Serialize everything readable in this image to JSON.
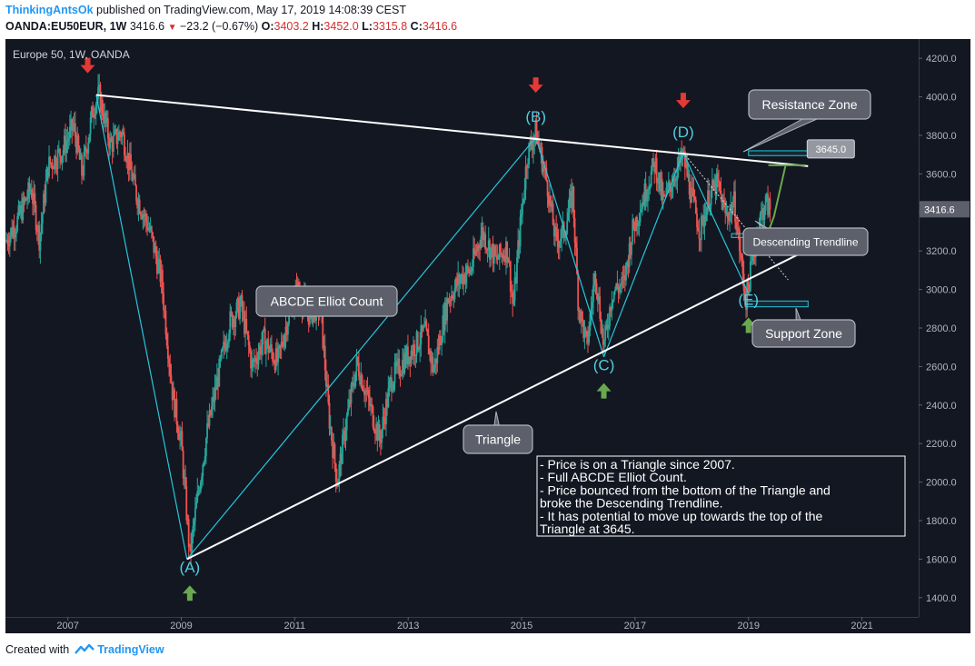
{
  "header": {
    "author": "ThinkingAntsOk",
    "published": "published on TradingView.com, May 17, 2019 14:08:39 CEST",
    "symbol": "OANDA:EU50EUR, 1W",
    "last": "3416.6",
    "down_arrow": "▼",
    "change": "−23.2 (−0.67%)",
    "o_label": "O:",
    "o_value": "3403.2",
    "h_label": "H:",
    "h_value": "3452.0",
    "l_label": "L:",
    "l_value": "3315.8",
    "c_label": "C:",
    "c_value": "3416.6"
  },
  "footer": {
    "created_with": "Created with",
    "brand": "TradingView",
    "logo_icon": "tradingview-logo-icon"
  },
  "chart_data": {
    "type": "candlestick",
    "title": "Europe 50, 1W, OANDA",
    "x_ticks": [
      2007,
      2009,
      2011,
      2013,
      2015,
      2017,
      2019,
      2021
    ],
    "y_ticks": [
      "1400.0",
      "1600.0",
      "1800.0",
      "2000.0",
      "2200.0",
      "2400.0",
      "2600.0",
      "2800.0",
      "3000.0",
      "3200.0",
      "3400.0",
      "3600.0",
      "3800.0",
      "4000.0",
      "4200.0"
    ],
    "xlim": [
      2005.9,
      2022.0
    ],
    "ylim": [
      1300,
      4300
    ],
    "last_price": 3416.6,
    "last_price_label": "3416.6",
    "price_path": [
      [
        2005.9,
        3250
      ],
      [
        2006.1,
        3350
      ],
      [
        2006.35,
        3530
      ],
      [
        2006.5,
        3260
      ],
      [
        2006.65,
        3640
      ],
      [
        2006.9,
        3720
      ],
      [
        2007.1,
        3850
      ],
      [
        2007.25,
        3600
      ],
      [
        2007.45,
        3950
      ],
      [
        2007.55,
        4010
      ],
      [
        2007.75,
        3750
      ],
      [
        2007.95,
        3820
      ],
      [
        2008.2,
        3500
      ],
      [
        2008.45,
        3300
      ],
      [
        2008.65,
        3050
      ],
      [
        2008.85,
        2450
      ],
      [
        2009.0,
        2200
      ],
      [
        2009.15,
        1620
      ],
      [
        2009.3,
        1950
      ],
      [
        2009.45,
        2250
      ],
      [
        2009.65,
        2550
      ],
      [
        2009.85,
        2830
      ],
      [
        2010.05,
        2920
      ],
      [
        2010.25,
        2600
      ],
      [
        2010.45,
        2740
      ],
      [
        2010.7,
        2620
      ],
      [
        2010.9,
        2880
      ],
      [
        2011.05,
        3000
      ],
      [
        2011.25,
        2870
      ],
      [
        2011.45,
        2920
      ],
      [
        2011.6,
        2350
      ],
      [
        2011.75,
        2000
      ],
      [
        2011.9,
        2300
      ],
      [
        2012.1,
        2620
      ],
      [
        2012.3,
        2420
      ],
      [
        2012.5,
        2220
      ],
      [
        2012.7,
        2530
      ],
      [
        2012.9,
        2620
      ],
      [
        2013.1,
        2700
      ],
      [
        2013.3,
        2780
      ],
      [
        2013.45,
        2580
      ],
      [
        2013.7,
        2950
      ],
      [
        2013.95,
        3070
      ],
      [
        2014.1,
        3100
      ],
      [
        2014.3,
        3300
      ],
      [
        2014.55,
        3150
      ],
      [
        2014.75,
        3220
      ],
      [
        2014.85,
        2900
      ],
      [
        2014.95,
        3250
      ],
      [
        2015.1,
        3700
      ],
      [
        2015.25,
        3820
      ],
      [
        2015.45,
        3550
      ],
      [
        2015.6,
        3250
      ],
      [
        2015.75,
        3300
      ],
      [
        2015.9,
        3500
      ],
      [
        2016.0,
        2930
      ],
      [
        2016.15,
        2700
      ],
      [
        2016.3,
        3100
      ],
      [
        2016.45,
        2700
      ],
      [
        2016.6,
        2990
      ],
      [
        2016.8,
        3030
      ],
      [
        2016.95,
        3300
      ],
      [
        2017.15,
        3480
      ],
      [
        2017.35,
        3660
      ],
      [
        2017.5,
        3450
      ],
      [
        2017.7,
        3600
      ],
      [
        2017.85,
        3690
      ],
      [
        2018.0,
        3480
      ],
      [
        2018.15,
        3300
      ],
      [
        2018.3,
        3480
      ],
      [
        2018.45,
        3550
      ],
      [
        2018.6,
        3380
      ],
      [
        2018.75,
        3450
      ],
      [
        2018.85,
        3200
      ],
      [
        2018.95,
        2940
      ],
      [
        2019.1,
        3200
      ],
      [
        2019.2,
        3360
      ],
      [
        2019.3,
        3450
      ],
      [
        2019.38,
        3416.6
      ]
    ],
    "trendlines": {
      "triangle_top": [
        [
          2007.5,
          4010
        ],
        [
          2020.05,
          3640
        ]
      ],
      "triangle_bottom": [
        [
          2009.1,
          1600
        ],
        [
          2020.0,
          3200
        ]
      ],
      "elliott_count": [
        [
          2007.5,
          4010
        ],
        [
          2009.1,
          1600
        ],
        [
          2015.25,
          3790
        ],
        [
          2016.45,
          2650
        ],
        [
          2017.85,
          3710
        ],
        [
          2019.0,
          2980
        ]
      ],
      "descending_trendline": [
        [
          2017.85,
          3710
        ],
        [
          2019.7,
          3050
        ]
      ]
    },
    "wave_labels": [
      {
        "label": "(A)",
        "x": 2009.15,
        "y": 1530,
        "arrow": "up"
      },
      {
        "label": "(B)",
        "x": 2015.25,
        "y": 3870,
        "arrow": "down"
      },
      {
        "label": "(C)",
        "x": 2016.45,
        "y": 2580,
        "arrow": "up"
      },
      {
        "label": "(D)",
        "x": 2017.85,
        "y": 3790,
        "arrow": "down"
      },
      {
        "label": "(E)",
        "x": 2019.0,
        "y": 2920,
        "arrow": "up"
      }
    ],
    "peak_arrow": {
      "x": 2007.35,
      "y": 4160,
      "arrow": "down"
    },
    "zones": [
      {
        "name": "resistance",
        "x0": 2019.0,
        "x1": 2020.1,
        "y0": 3695,
        "y1": 3720
      },
      {
        "name": "support",
        "x0": 2018.95,
        "x1": 2020.05,
        "y0": 2910,
        "y1": 2940
      },
      {
        "name": "breakout",
        "x0": 2018.7,
        "x1": 2019.85,
        "y0": 3270,
        "y1": 3290
      }
    ],
    "target": {
      "label": "3645.0",
      "value": 3645,
      "x_from": 2019.3,
      "y_from": 3260,
      "x_to": 2019.65,
      "y_to": 3640
    },
    "annotations": {
      "resistance": "Resistance Zone",
      "descending": "Descending Trendline",
      "support": "Support Zone",
      "elliott": "ABCDE Elliot Count",
      "triangle": "Triangle"
    },
    "notes": [
      "- Price is on a Triangle since 2007.",
      "- Full ABCDE Elliot Count.",
      "- Price bounced from the bottom of the Triangle and",
      "broke the Descending Trendline.",
      "- It has potential to move up towards the top of the",
      "Triangle at 3645."
    ],
    "colors": {
      "background": "#131722",
      "up_candle": "#26a69a",
      "down_candle": "#ef5350",
      "trend_white": "#ffffff",
      "elliott_cyan": "#26c6da",
      "wave_label_cyan": "#4dd0e1",
      "arrow_red": "#e53935",
      "arrow_green": "#6aa84f",
      "axis_text": "#b2b5be",
      "callout_fill": "#5d606b",
      "price_tag": "#5d606b"
    }
  }
}
